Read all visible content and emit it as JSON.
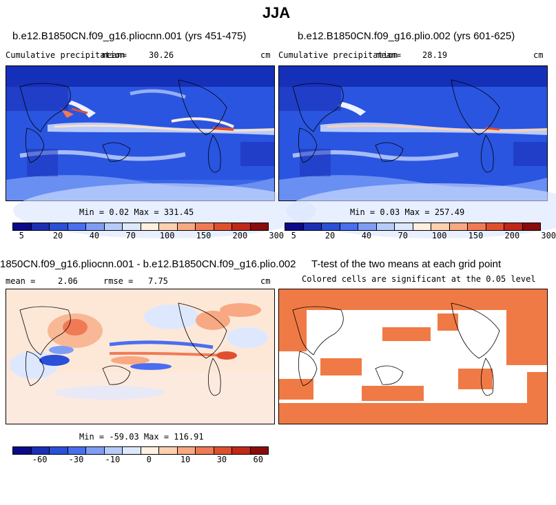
{
  "title": "JJA",
  "chart_data": [
    {
      "type": "heatmap",
      "title": "b.e12.B1850CN.f09_g16.pliocnn.001 (yrs 451-475)",
      "subtitle_left": "Cumulative precipitation",
      "mean_label": "mean=",
      "mean_value": "30.26",
      "units": "cm",
      "min_max": "Min =   0.02 Max = 331.45",
      "colorbar_ticks": [
        "5",
        "20",
        "40",
        "70",
        "100",
        "150",
        "200",
        "300"
      ],
      "colorbar_colors": [
        "#0a0a8c",
        "#1a2fb5",
        "#2a4fd8",
        "#4a6ef0",
        "#7f9df5",
        "#b5ccfa",
        "#dde8ff",
        "#fff0e0",
        "#fdd0b0",
        "#f8a882",
        "#f07a55",
        "#e0502f",
        "#c0281a",
        "#8c0a0a"
      ]
    },
    {
      "type": "heatmap",
      "title": "b.e12.B1850CN.f09_g16.plio.002 (yrs 601-625)",
      "subtitle_left": "Cumulative precipitation",
      "mean_label": "mean=",
      "mean_value": "28.19",
      "units": "cm",
      "min_max": "Min =   0.03 Max = 257.49",
      "colorbar_ticks": [
        "5",
        "20",
        "40",
        "70",
        "100",
        "150",
        "200",
        "300"
      ],
      "colorbar_colors": [
        "#0a0a8c",
        "#1a2fb5",
        "#2a4fd8",
        "#4a6ef0",
        "#7f9df5",
        "#b5ccfa",
        "#dde8ff",
        "#fff0e0",
        "#fdd0b0",
        "#f8a882",
        "#f07a55",
        "#e0502f",
        "#c0281a",
        "#8c0a0a"
      ]
    },
    {
      "type": "heatmap",
      "title": "1850CN.f09_g16.pliocnn.001 - b.e12.B1850CN.f09_g16.plio.002",
      "mean_label": "mean =",
      "mean_value": "2.06",
      "rmse_label": "rmse =",
      "rmse_value": "7.75",
      "units": "cm",
      "min_max": "Min = -59.03 Max = 116.91",
      "colorbar_ticks": [
        "-60",
        "-30",
        "-10",
        "0",
        "10",
        "30",
        "60"
      ],
      "colorbar_colors": [
        "#0a0a8c",
        "#1a2fb5",
        "#2a4fd8",
        "#4a6ef0",
        "#7f9df5",
        "#b5ccfa",
        "#dde8ff",
        "#fff0e0",
        "#fdd0b0",
        "#f8a882",
        "#f07a55",
        "#e0502f",
        "#c0281a",
        "#8c0a0a"
      ]
    },
    {
      "type": "heatmap",
      "title": "T-test of the two means at each grid point",
      "subtitle": "Colored cells are significant at the 0.05 level",
      "color": "#f07a45"
    }
  ]
}
